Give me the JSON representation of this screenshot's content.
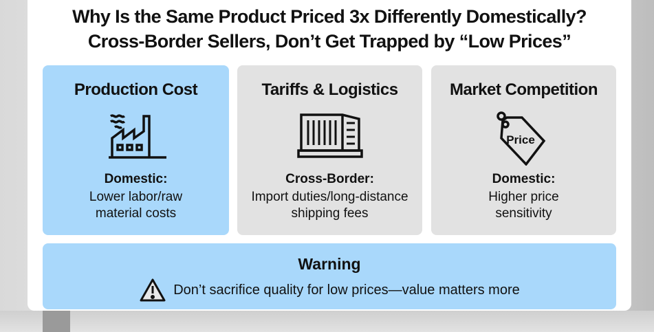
{
  "title": {
    "line1": "Why Is the Same Product Priced 3x Differently Domestically?",
    "line2": "Cross-Border Sellers, Don’t Get Trapped by “Low Prices”"
  },
  "cards": [
    {
      "heading": "Production Cost",
      "icon": "factory-icon",
      "subheading": "Domestic:",
      "desc_line1": "Lower labor/raw",
      "desc_line2": "material costs",
      "color": "#a9d8fb"
    },
    {
      "heading": "Tariffs & Logistics",
      "icon": "shipping-container-icon",
      "subheading": "Cross-Border:",
      "desc_line1": "Import duties/long-distance",
      "desc_line2": "shipping fees",
      "color": "#e2e2e2"
    },
    {
      "heading": "Market Competition",
      "icon": "price-tag-icon",
      "icon_text": "Price",
      "subheading": "Domestic:",
      "desc_line1": "Higher price",
      "desc_line2": "sensitivity",
      "color": "#e2e2e2"
    }
  ],
  "warning": {
    "heading": "Warning",
    "icon": "warning-icon",
    "text": "Don’t sacrifice quality for low prices—value matters more"
  }
}
